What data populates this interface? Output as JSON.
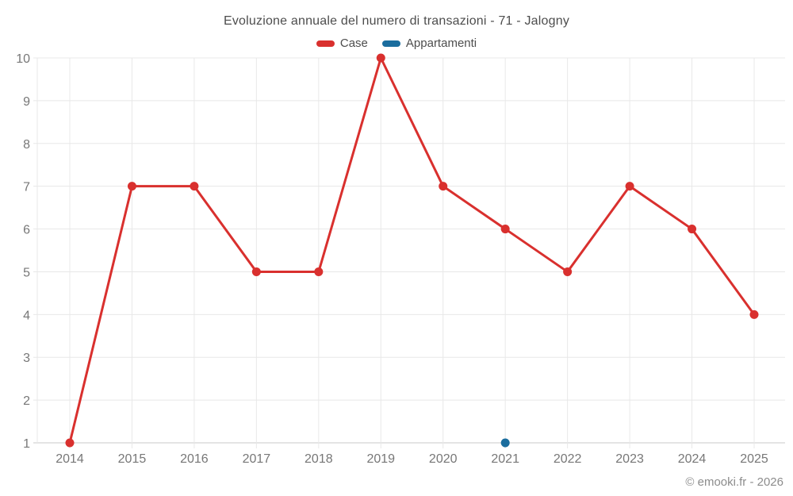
{
  "title": "Evoluzione annuale del numero di transazioni - 71 - Jalogny",
  "legend": {
    "items": [
      {
        "label": "Case",
        "color": "#d9302e"
      },
      {
        "label": "Appartamenti",
        "color": "#1b6d9e"
      }
    ]
  },
  "footer": {
    "credit": "© emooki.fr - 2026"
  },
  "colors": {
    "grid": "#e8e8e8",
    "axis": "#c8c8c8",
    "tick_label": "#777777",
    "title_text": "#4d4d4d",
    "background": "#ffffff"
  },
  "chart_data": {
    "type": "line",
    "title": "Evoluzione annuale del numero di transazioni - 71 - Jalogny",
    "x": [
      2014,
      2015,
      2016,
      2017,
      2018,
      2019,
      2020,
      2021,
      2022,
      2023,
      2024,
      2025
    ],
    "series": [
      {
        "name": "Case",
        "color": "#d9302e",
        "values": [
          1,
          7,
          7,
          5,
          5,
          10,
          7,
          6,
          5,
          7,
          6,
          4
        ]
      },
      {
        "name": "Appartamenti",
        "color": "#1b6d9e",
        "values": [
          null,
          null,
          null,
          null,
          null,
          null,
          null,
          1,
          null,
          null,
          null,
          null
        ]
      }
    ],
    "xlabel": "",
    "ylabel": "",
    "ylim": [
      1,
      10
    ],
    "yticks": [
      1,
      2,
      3,
      4,
      5,
      6,
      7,
      8,
      9,
      10
    ],
    "grid": true,
    "legend_position": "top"
  }
}
